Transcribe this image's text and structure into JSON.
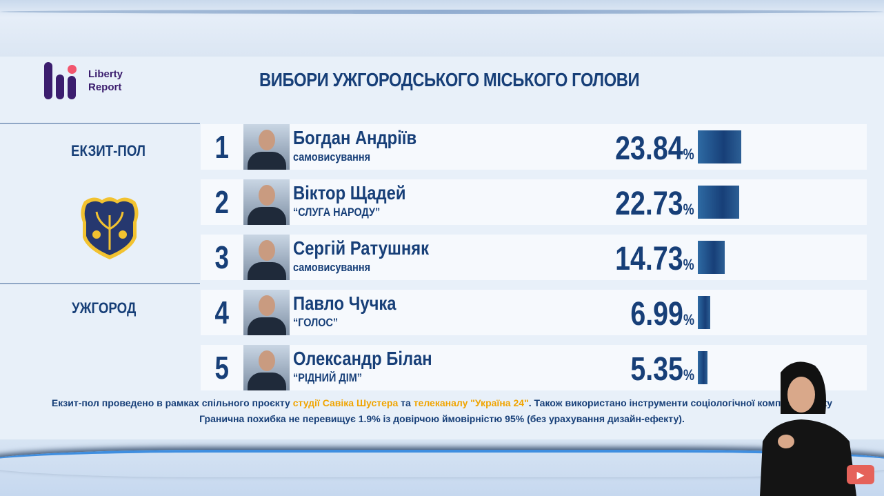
{
  "header": {
    "logo_text_1": "Liberty",
    "logo_text_2": "Report",
    "title": "ВИБОРИ УЖГОРОДСЬКОГО МІСЬКОГО ГОЛОВИ"
  },
  "sidebar": {
    "label_top": "ЕКЗИТ-ПОЛ",
    "label_bottom": "УЖГОРОД"
  },
  "chart_data": {
    "type": "bar",
    "title": "ВИБОРИ УЖГОРОДСЬКОГО МІСЬКОГО ГОЛОВИ",
    "unit": "%",
    "categories": [
      "Богдан Андріїв",
      "Віктор Щадей",
      "Сергій Ратушняк",
      "Павло Чучка",
      "Олександр Білан"
    ],
    "ranks": [
      "1",
      "2",
      "3",
      "4",
      "5"
    ],
    "parties": [
      "самовисування",
      "“СЛУГА НАРОДУ”",
      "самовисування",
      "“ГОЛОС”",
      "“РІДНИЙ ДІМ”"
    ],
    "values": [
      23.84,
      22.73,
      14.73,
      6.99,
      5.35
    ],
    "labels": [
      "23.84",
      "22.73",
      "14.73",
      "6.99",
      "5.35"
    ],
    "orientation": "horizontal",
    "bar_color": "#173f78"
  },
  "footer": {
    "line1_a": "Екзит-пол проведено в рамках спільного проєкту ",
    "line1_b": "студії Савіка Шустера",
    "line1_c": " та ",
    "line1_d": "телеканалу \"Україна 24\"",
    "line1_e": ". Також використано інструменти соціологічної компанії Liberty",
    "line2": "Гранична похибка не перевищує 1.9% із довірчою ймовірністю 95% (без урахування дизайн-ефекту).",
    "highlight_color": "#f0a400"
  },
  "overlay": {
    "subscribe_label": "▶"
  }
}
